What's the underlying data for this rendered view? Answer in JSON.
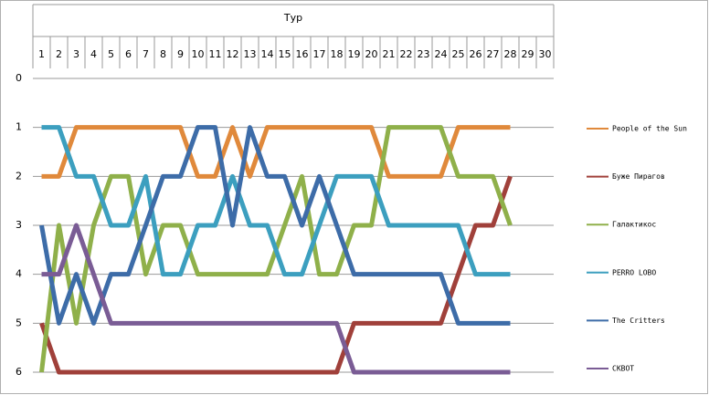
{
  "chart_data": {
    "type": "line",
    "x_axis_title": "Тур",
    "categories": [
      1,
      2,
      3,
      4,
      5,
      6,
      7,
      8,
      9,
      10,
      11,
      12,
      13,
      14,
      15,
      16,
      17,
      18,
      19,
      20,
      21,
      22,
      23,
      24,
      25,
      26,
      27,
      28,
      29,
      30
    ],
    "ylim": [
      0,
      6
    ],
    "yticks": [
      0,
      1,
      2,
      3,
      4,
      5,
      6
    ],
    "y_inverted": true,
    "x_axis_position": "top",
    "grid": true,
    "legend": "right",
    "series": [
      {
        "name": "People of the Sun",
        "color": "#e0893b",
        "values": [
          2,
          2,
          1,
          1,
          1,
          1,
          1,
          1,
          1,
          2,
          2,
          1,
          2,
          1,
          1,
          1,
          1,
          1,
          1,
          1,
          2,
          2,
          2,
          2,
          1,
          1,
          1,
          1,
          null,
          null
        ]
      },
      {
        "name": "Буже Пирагов",
        "color": "#a0403a",
        "values": [
          5,
          6,
          6,
          6,
          6,
          6,
          6,
          6,
          6,
          6,
          6,
          6,
          6,
          6,
          6,
          6,
          6,
          6,
          5,
          5,
          5,
          5,
          5,
          5,
          4,
          3,
          3,
          2,
          null,
          null
        ]
      },
      {
        "name": "Галактикос",
        "color": "#8fb04a",
        "values": [
          6,
          3,
          5,
          3,
          2,
          2,
          4,
          3,
          3,
          4,
          4,
          4,
          4,
          4,
          3,
          2,
          4,
          4,
          3,
          3,
          1,
          1,
          1,
          1,
          2,
          2,
          2,
          3,
          null,
          null
        ]
      },
      {
        "name": "PERRO LOBO",
        "color": "#3c9fbf",
        "values": [
          1,
          1,
          2,
          2,
          3,
          3,
          2,
          4,
          4,
          3,
          3,
          2,
          3,
          3,
          4,
          4,
          3,
          2,
          2,
          2,
          3,
          3,
          3,
          3,
          3,
          4,
          4,
          4,
          null,
          null
        ]
      },
      {
        "name": "The Critters",
        "color": "#3d6ca8",
        "values": [
          3,
          5,
          4,
          5,
          4,
          4,
          3,
          2,
          2,
          1,
          1,
          3,
          1,
          2,
          2,
          3,
          2,
          3,
          4,
          4,
          4,
          4,
          4,
          4,
          5,
          5,
          5,
          5,
          null,
          null
        ]
      },
      {
        "name": "СКВОТ",
        "color": "#7a5c95",
        "values": [
          4,
          4,
          3,
          4,
          5,
          5,
          5,
          5,
          5,
          5,
          5,
          5,
          5,
          5,
          5,
          5,
          5,
          5,
          6,
          6,
          6,
          6,
          6,
          6,
          6,
          6,
          6,
          6,
          null,
          null
        ]
      }
    ]
  }
}
